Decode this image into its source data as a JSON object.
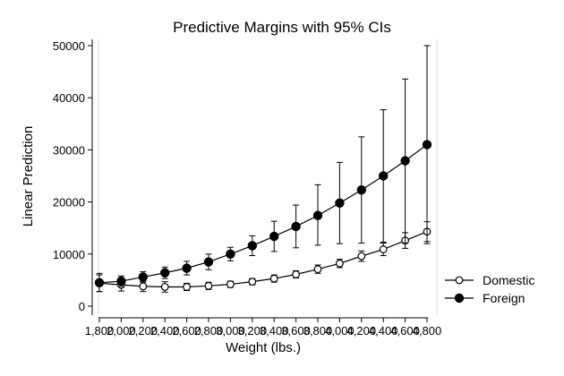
{
  "chart_data": {
    "type": "line",
    "title": "Predictive Margins with 95% CIs",
    "xlabel": "Weight (lbs.)",
    "ylabel": "Linear Prediction",
    "x": [
      1800,
      2000,
      2200,
      2400,
      2600,
      2800,
      3000,
      3200,
      3400,
      3600,
      3800,
      4000,
      4200,
      4400,
      4600,
      4800
    ],
    "x_tick_labels": [
      "1,800",
      "2,000",
      "2,200",
      "2,400",
      "2,600",
      "2,800",
      "3,000",
      "3,200",
      "3,400",
      "3,600",
      "3,800",
      "4,000",
      "4,200",
      "4,400",
      "4,600",
      "4,800"
    ],
    "xlim": [
      1800,
      4800
    ],
    "ylim": [
      0,
      50000
    ],
    "y_ticks": [
      0,
      10000,
      20000,
      30000,
      40000,
      50000
    ],
    "y_tick_labels": [
      "0",
      "10000",
      "20000",
      "30000",
      "40000",
      "50000"
    ],
    "grid": false,
    "legend_position": "right",
    "series": [
      {
        "name": "Domestic",
        "marker": "hollow-circle",
        "color": "#000000",
        "values": [
          4400,
          4100,
          3800,
          3700,
          3700,
          3900,
          4200,
          4700,
          5300,
          6100,
          7100,
          8200,
          9600,
          10900,
          12600,
          14300
        ],
        "ci_low": [
          2800,
          2900,
          2800,
          2700,
          3000,
          3200,
          3600,
          4100,
          4600,
          5400,
          6300,
          7400,
          8600,
          9700,
          11100,
          12400
        ],
        "ci_high": [
          6000,
          5300,
          4800,
          4700,
          4400,
          4600,
          4800,
          5300,
          6000,
          6800,
          7900,
          9000,
          10600,
          12100,
          14100,
          16200
        ]
      },
      {
        "name": "Foreign",
        "marker": "filled-circle",
        "color": "#000000",
        "values": [
          4500,
          4800,
          5600,
          6400,
          7300,
          8500,
          10000,
          11600,
          13400,
          15300,
          17400,
          19800,
          22300,
          25000,
          27900,
          31000
        ],
        "ci_low": [
          2800,
          3800,
          4600,
          5300,
          6000,
          7000,
          8700,
          9700,
          10500,
          11200,
          11700,
          12000,
          12100,
          12300,
          12100,
          12000
        ],
        "ci_high": [
          6300,
          5800,
          6600,
          7500,
          8600,
          10000,
          11300,
          13500,
          16300,
          19400,
          23300,
          27600,
          32500,
          37700,
          43600,
          50000
        ]
      }
    ]
  }
}
